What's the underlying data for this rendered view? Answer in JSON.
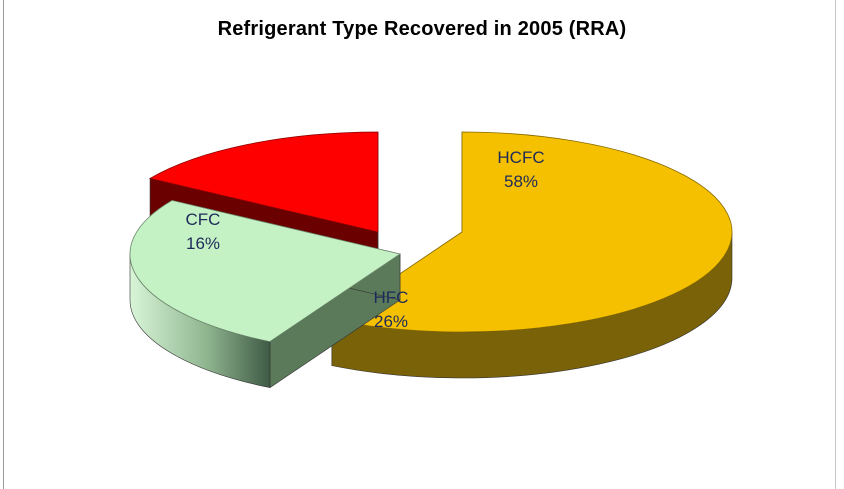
{
  "chart_data": {
    "type": "pie",
    "title": "Refrigerant Type Recovered in 2005 (RRA)",
    "slices": [
      {
        "label": "HCFC",
        "value": 58,
        "value_label": "58%",
        "color": "#f5c000"
      },
      {
        "label": "HFC",
        "value": 26,
        "value_label": "26%",
        "color": "#c4f2c4"
      },
      {
        "label": "CFC",
        "value": 16,
        "value_label": "16%",
        "color": "#ff0000"
      }
    ],
    "style": "3d-exploded"
  }
}
